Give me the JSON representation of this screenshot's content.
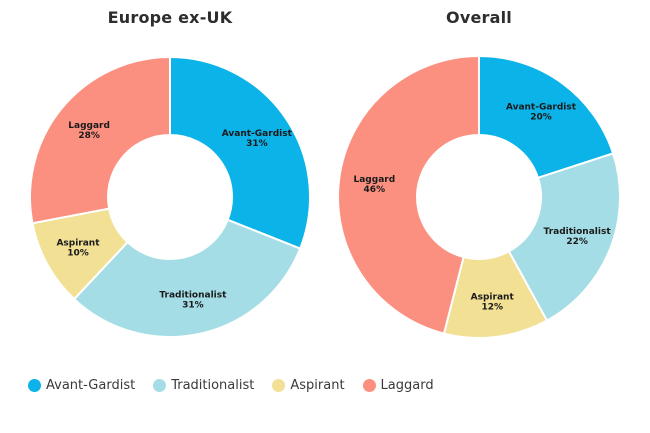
{
  "chart_data": [
    {
      "type": "pie",
      "variant": "donut",
      "title": "Europe ex-UK",
      "categories": [
        "Avant-Gardist",
        "Traditionalist",
        "Aspirant",
        "Laggard"
      ],
      "values": [
        31,
        31,
        10,
        28
      ],
      "labels": [
        "31%",
        "31%",
        "10%",
        "28%"
      ],
      "colors": [
        "#0bb3e8",
        "#a4dde5",
        "#f2e095",
        "#fb9080"
      ],
      "start_angle": "12 o'clock, clockwise"
    },
    {
      "type": "pie",
      "variant": "donut",
      "title": "Overall",
      "categories": [
        "Avant-Gardist",
        "Traditionalist",
        "Aspirant",
        "Laggard"
      ],
      "values": [
        20,
        22,
        12,
        46
      ],
      "labels": [
        "20%",
        "22%",
        "12%",
        "46%"
      ],
      "colors": [
        "#0bb3e8",
        "#a4dde5",
        "#f2e095",
        "#fb9080"
      ],
      "start_angle": "12 o'clock, clockwise"
    }
  ],
  "titles": {
    "left": "Europe ex-UK",
    "right": "Overall"
  },
  "legend": {
    "position": "bottom-left",
    "items": [
      {
        "label": "Avant-Gardist",
        "color": "#0bb3e8"
      },
      {
        "label": "Traditionalist",
        "color": "#a4dde5"
      },
      {
        "label": "Aspirant",
        "color": "#f2e095"
      },
      {
        "label": "Laggard",
        "color": "#fb9080"
      }
    ]
  }
}
